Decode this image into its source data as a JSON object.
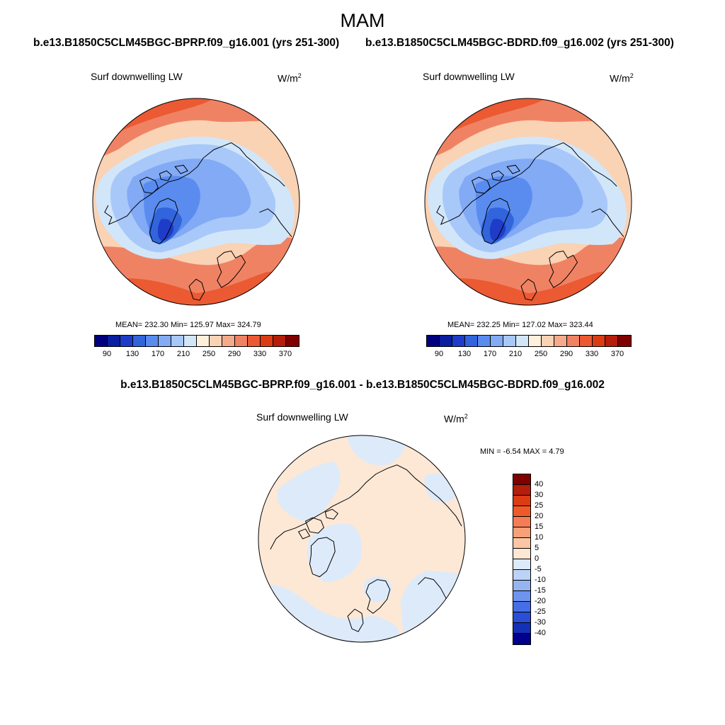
{
  "figure": {
    "season": "MAM",
    "left_case_title": "b.e13.B1850C5CLM45BGC-BPRP.f09_g16.001 (yrs 251-300)",
    "right_case_title": "b.e13.B1850C5CLM45BGC-BDRD.f09_g16.002 (yrs 251-300)",
    "diff_title": "b.e13.B1850C5CLM45BGC-BPRP.f09_g16.001 - b.e13.B1850C5CLM45BGC-BDRD.f09_g16.002"
  },
  "panels": {
    "left": {
      "variable": "Surf downwelling LW",
      "units_base": "W/m",
      "units_exp": "2",
      "stats": "MEAN= 232.30  Min= 125.97  Max= 324.79"
    },
    "right": {
      "variable": "Surf downwelling LW",
      "units_base": "W/m",
      "units_exp": "2",
      "stats": "MEAN= 232.25  Min= 127.02  Max= 323.44"
    },
    "diff": {
      "variable": "Surf downwelling LW",
      "units_base": "W/m",
      "units_exp": "2",
      "stats": "MIN =  -6.54 MAX =   4.79"
    }
  },
  "colorbars": {
    "abs_colors": [
      "#00007f",
      "#0a1ea0",
      "#1e3cc8",
      "#3264dc",
      "#5a8cf0",
      "#82aaf5",
      "#a8c8fa",
      "#d2e6fa",
      "#fff0dc",
      "#fad2b4",
      "#f5aa8c",
      "#f08264",
      "#eb5a32",
      "#dc3c14",
      "#b41e0a",
      "#800000"
    ],
    "abs_tick_labels": [
      "90",
      "130",
      "170",
      "210",
      "250",
      "290",
      "330",
      "370"
    ],
    "diff_colors": [
      "#800000",
      "#b41e0a",
      "#dc3c14",
      "#f05a28",
      "#f57c55",
      "#f8a07a",
      "#fbc6a4",
      "#fde8d6",
      "#ddeaf9",
      "#bcd3f7",
      "#94b4f2",
      "#6e94ee",
      "#466ee6",
      "#2a4ed8",
      "#1530b8",
      "#00008c"
    ],
    "diff_tick_labels": [
      "40",
      "30",
      "25",
      "20",
      "15",
      "10",
      "5",
      "0",
      "-5",
      "-10",
      "-15",
      "-20",
      "-25",
      "-30",
      "-40"
    ]
  }
}
